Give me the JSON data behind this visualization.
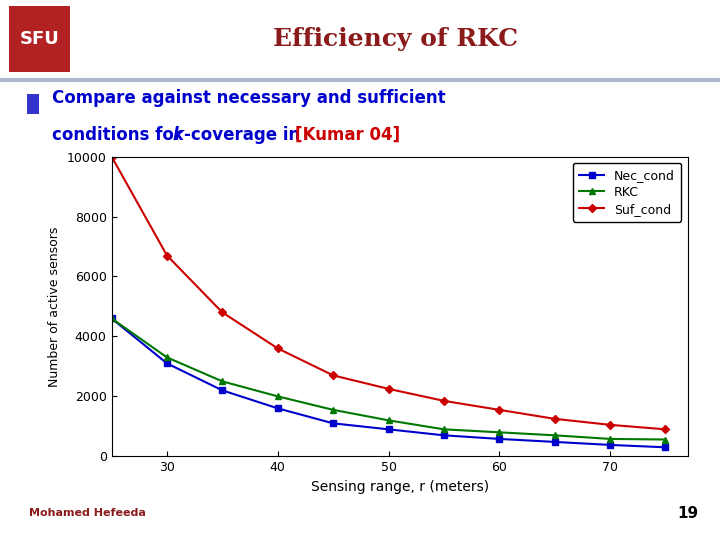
{
  "title": "Efficiency of RKC",
  "xlabel": "Sensing range, r (meters)",
  "ylabel": "Number of active sensors",
  "x_values": [
    25,
    30,
    35,
    40,
    45,
    50,
    55,
    60,
    65,
    70,
    75
  ],
  "nec_cond": [
    4600,
    3100,
    2200,
    1600,
    1100,
    900,
    700,
    580,
    480,
    380,
    300
  ],
  "rkc": [
    4600,
    3300,
    2500,
    2000,
    1550,
    1200,
    900,
    800,
    700,
    580,
    560
  ],
  "suf_cond": [
    10000,
    6700,
    4800,
    3600,
    2700,
    2250,
    1850,
    1550,
    1250,
    1050,
    900
  ],
  "nec_color": "#0000cc",
  "rkc_color": "#007700",
  "suf_color": "#cc0000",
  "ylim": [
    0,
    10000
  ],
  "xlim": [
    25,
    77
  ],
  "yticks": [
    0,
    2000,
    4000,
    6000,
    8000,
    10000
  ],
  "xticks": [
    30,
    40,
    50,
    60,
    70
  ],
  "title_color": "#8b1a1a",
  "bullet_color": "#3333cc",
  "text_color": "#0000cc",
  "bracket_color": "#cc0000",
  "page_number": "19",
  "footer_text": "Mohamed Hefeeda",
  "footer_color": "#8b1a1a",
  "sfu_bg": "#b22222",
  "slide_bg": "#ffffff",
  "separator_color": "#b0b8cc"
}
